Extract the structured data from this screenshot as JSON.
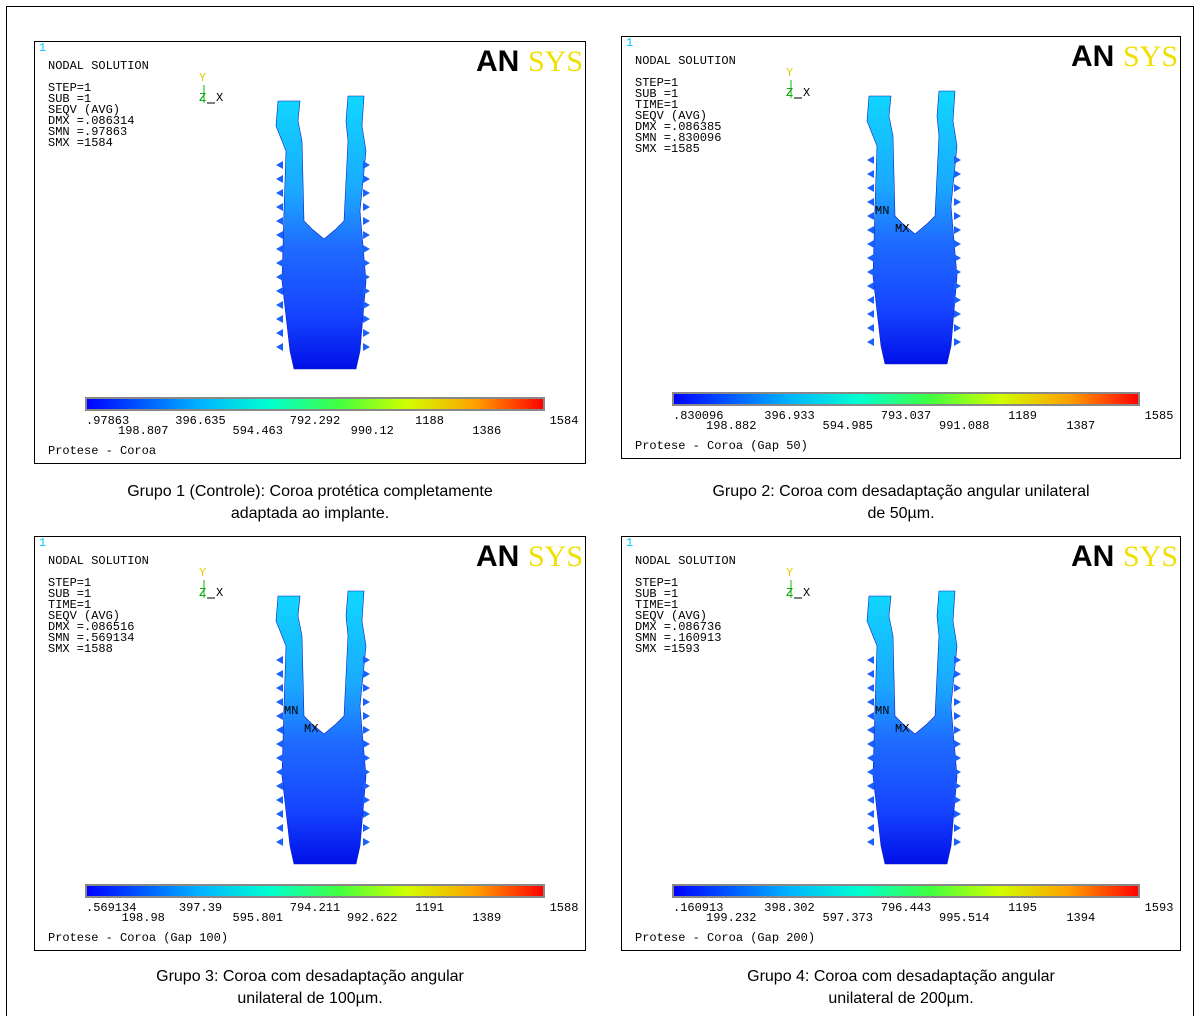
{
  "panels": [
    {
      "index": "1",
      "title": "NODAL SOLUTION",
      "info": [
        "STEP=1",
        "SUB =1",
        "SEQV     (AVG)",
        "DMX =.086314",
        "SMN =.97863",
        "SMX =1584"
      ],
      "triad": [
        "Y",
        "Z",
        "X"
      ],
      "logo": [
        "AN",
        "SYS"
      ],
      "markers": [],
      "scale": [
        ".97863",
        "198.807",
        "396.635",
        "594.463",
        "792.292",
        "990.12",
        "1188",
        "1386",
        "1584"
      ],
      "footer": "Protese - Coroa",
      "caption": [
        "Grupo 1 (Controle): Coroa protética completamente",
        "adaptada ao implante."
      ]
    },
    {
      "index": "1",
      "title": "NODAL SOLUTION",
      "info": [
        "STEP=1",
        "SUB =1",
        "TIME=1",
        "SEQV     (AVG)",
        "DMX =.086385",
        "SMN =.830096",
        "SMX =1585"
      ],
      "triad": [
        "Y",
        "Z",
        "X"
      ],
      "logo": [
        "AN",
        "SYS"
      ],
      "markers": [
        "MN",
        "MX"
      ],
      "scale": [
        ".830096",
        "198.882",
        "396.933",
        "594.985",
        "793.037",
        "991.088",
        "1189",
        "1387",
        "1585"
      ],
      "footer": "Protese - Coroa (Gap 50)",
      "caption": [
        "Grupo 2: Coroa com desadaptação angular unilateral",
        "de 50µm."
      ]
    },
    {
      "index": "1",
      "title": "NODAL SOLUTION",
      "info": [
        "STEP=1",
        "SUB =1",
        "TIME=1",
        "SEQV     (AVG)",
        "DMX =.086516",
        "SMN =.569134",
        "SMX =1588"
      ],
      "triad": [
        "Y",
        "Z",
        "X"
      ],
      "logo": [
        "AN",
        "SYS"
      ],
      "markers": [
        "MN",
        "MX"
      ],
      "scale": [
        ".569134",
        "198.98",
        "397.39",
        "595.801",
        "794.211",
        "992.622",
        "1191",
        "1389",
        "1588"
      ],
      "footer": "Protese - Coroa (Gap 100)",
      "caption": [
        "Grupo 3: Coroa com desadaptação angular",
        "unilateral de 100µm."
      ]
    },
    {
      "index": "1",
      "title": "NODAL SOLUTION",
      "info": [
        "STEP=1",
        "SUB =1",
        "TIME=1",
        "SEQV     (AVG)",
        "DMX =.086736",
        "SMN =.160913",
        "SMX =1593"
      ],
      "triad": [
        "Y",
        "Z",
        "X"
      ],
      "logo": [
        "AN",
        "SYS"
      ],
      "markers": [
        "MN",
        "MX"
      ],
      "scale": [
        ".160913",
        "199.232",
        "398.302",
        "597.373",
        "796.443",
        "995.514",
        "1195",
        "1394",
        "1593"
      ],
      "footer": "Protese - Coroa (Gap 200)",
      "caption": [
        "Grupo 4: Coroa com desadaptação angular",
        "unilateral de 200µm."
      ]
    }
  ]
}
